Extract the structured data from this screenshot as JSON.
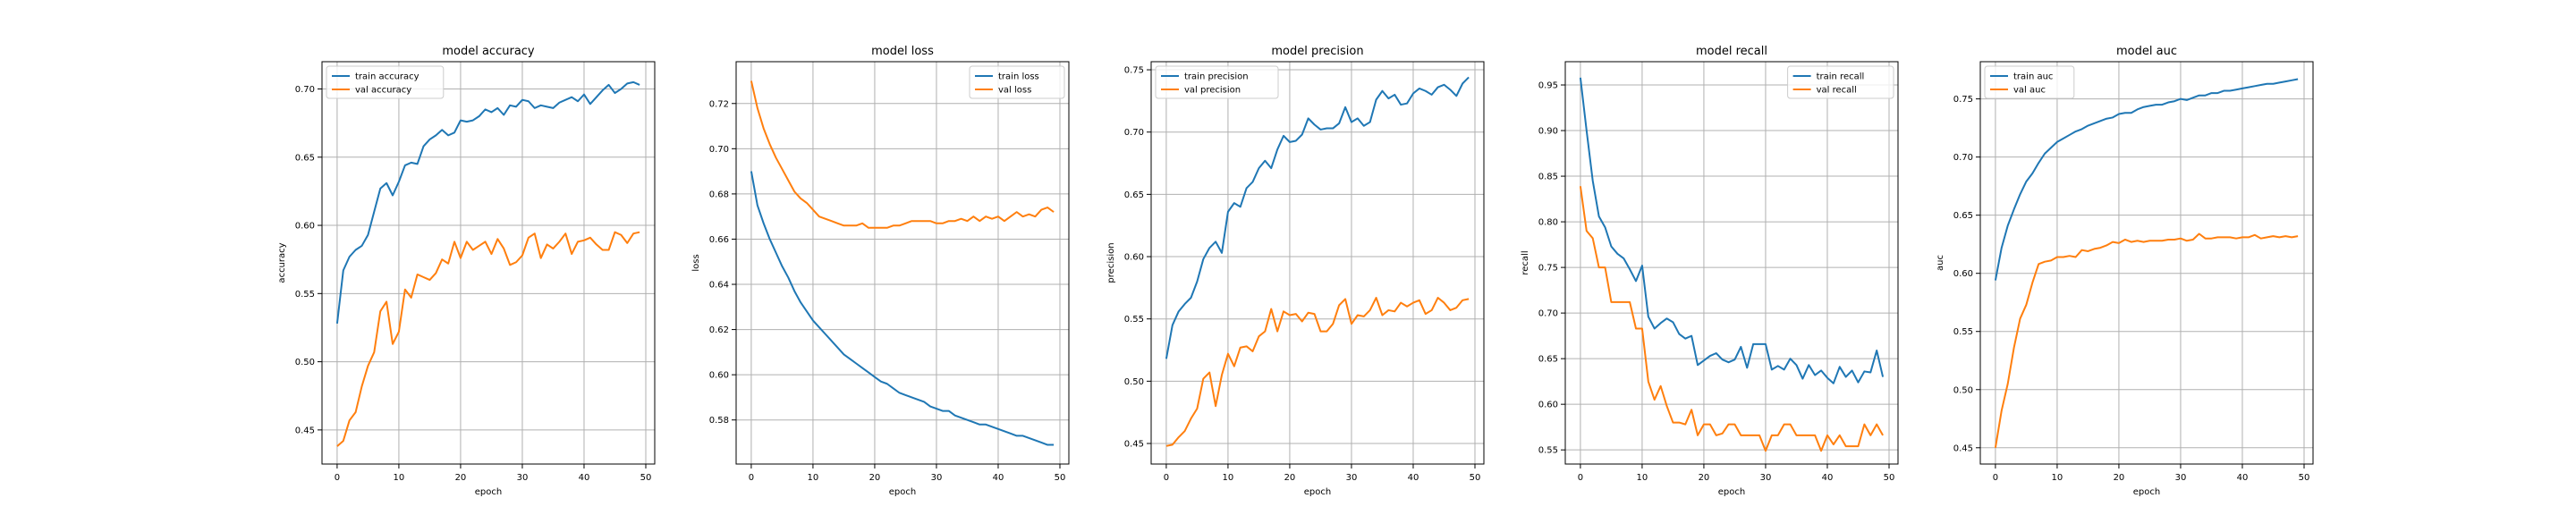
{
  "figure": {
    "background": "#ffffff"
  },
  "colors": {
    "train": "#1f77b4",
    "val": "#ff7f0e",
    "grid": "#b0b0b0"
  },
  "chart_data": [
    {
      "type": "line",
      "title": "model accuracy",
      "xlabel": "epoch",
      "ylabel": "accuracy",
      "xlim": [
        -2.45,
        51.45
      ],
      "ylim": [
        0.425,
        0.72
      ],
      "xticks": [
        0,
        10,
        20,
        30,
        40,
        50
      ],
      "yticks": [
        0.45,
        0.5,
        0.55,
        0.6,
        0.65,
        0.7
      ],
      "ytick_labels": [
        "0.45",
        "0.50",
        "0.55",
        "0.60",
        "0.65",
        "0.70"
      ],
      "legend": "upper left",
      "grid": true,
      "x": [
        0,
        1,
        2,
        3,
        4,
        5,
        6,
        7,
        8,
        9,
        10,
        11,
        12,
        13,
        14,
        15,
        16,
        17,
        18,
        19,
        20,
        21,
        22,
        23,
        24,
        25,
        26,
        27,
        28,
        29,
        30,
        31,
        32,
        33,
        34,
        35,
        36,
        37,
        38,
        39,
        40,
        41,
        42,
        43,
        44,
        45,
        46,
        47,
        48,
        49
      ],
      "series": [
        {
          "name": "train accuracy",
          "color": "#1f77b4",
          "values": [
            0.528,
            0.567,
            0.577,
            0.582,
            0.585,
            0.593,
            0.61,
            0.627,
            0.631,
            0.622,
            0.632,
            0.644,
            0.646,
            0.645,
            0.658,
            0.663,
            0.666,
            0.67,
            0.666,
            0.668,
            0.677,
            0.676,
            0.677,
            0.68,
            0.685,
            0.683,
            0.686,
            0.681,
            0.688,
            0.687,
            0.692,
            0.691,
            0.686,
            0.688,
            0.687,
            0.686,
            0.69,
            0.692,
            0.694,
            0.691,
            0.696,
            0.689,
            0.694,
            0.699,
            0.703,
            0.697,
            0.7,
            0.704,
            0.705,
            0.703
          ]
        },
        {
          "name": "val accuracy",
          "color": "#ff7f0e",
          "values": [
            0.438,
            0.442,
            0.457,
            0.463,
            0.482,
            0.497,
            0.507,
            0.537,
            0.544,
            0.513,
            0.522,
            0.553,
            0.547,
            0.564,
            0.562,
            0.56,
            0.565,
            0.575,
            0.572,
            0.588,
            0.576,
            0.588,
            0.582,
            0.585,
            0.588,
            0.579,
            0.59,
            0.583,
            0.571,
            0.573,
            0.578,
            0.591,
            0.594,
            0.576,
            0.586,
            0.583,
            0.588,
            0.594,
            0.579,
            0.588,
            0.589,
            0.591,
            0.586,
            0.582,
            0.582,
            0.595,
            0.593,
            0.587,
            0.594,
            0.595
          ]
        }
      ]
    },
    {
      "type": "line",
      "title": "model loss",
      "xlabel": "epoch",
      "ylabel": "loss",
      "xlim": [
        -2.45,
        51.45
      ],
      "ylim": [
        0.5605,
        0.7385
      ],
      "xticks": [
        0,
        10,
        20,
        30,
        40,
        50
      ],
      "yticks": [
        0.58,
        0.6,
        0.62,
        0.64,
        0.66,
        0.68,
        0.7,
        0.72
      ],
      "ytick_labels": [
        "0.58",
        "0.60",
        "0.62",
        "0.64",
        "0.66",
        "0.68",
        "0.70",
        "0.72"
      ],
      "legend": "upper right",
      "grid": true,
      "x": [
        0,
        1,
        2,
        3,
        4,
        5,
        6,
        7,
        8,
        9,
        10,
        11,
        12,
        13,
        14,
        15,
        16,
        17,
        18,
        19,
        20,
        21,
        22,
        23,
        24,
        25,
        26,
        27,
        28,
        29,
        30,
        31,
        32,
        33,
        34,
        35,
        36,
        37,
        38,
        39,
        40,
        41,
        42,
        43,
        44,
        45,
        46,
        47,
        48,
        49
      ],
      "series": [
        {
          "name": "train loss",
          "color": "#1f77b4",
          "values": [
            0.69,
            0.675,
            0.667,
            0.66,
            0.654,
            0.648,
            0.643,
            0.637,
            0.632,
            0.628,
            0.624,
            0.621,
            0.618,
            0.615,
            0.612,
            0.609,
            0.607,
            0.605,
            0.603,
            0.601,
            0.599,
            0.597,
            0.596,
            0.594,
            0.592,
            0.591,
            0.59,
            0.589,
            0.588,
            0.586,
            0.585,
            0.584,
            0.584,
            0.582,
            0.581,
            0.58,
            0.579,
            0.578,
            0.578,
            0.577,
            0.576,
            0.575,
            0.574,
            0.573,
            0.573,
            0.572,
            0.571,
            0.57,
            0.569,
            0.569
          ]
        },
        {
          "name": "val loss",
          "color": "#ff7f0e",
          "values": [
            0.73,
            0.718,
            0.709,
            0.702,
            0.696,
            0.691,
            0.686,
            0.681,
            0.678,
            0.676,
            0.673,
            0.67,
            0.669,
            0.668,
            0.667,
            0.666,
            0.666,
            0.666,
            0.667,
            0.665,
            0.665,
            0.665,
            0.665,
            0.666,
            0.666,
            0.667,
            0.668,
            0.668,
            0.668,
            0.668,
            0.667,
            0.667,
            0.668,
            0.668,
            0.669,
            0.668,
            0.67,
            0.668,
            0.67,
            0.669,
            0.67,
            0.668,
            0.67,
            0.672,
            0.67,
            0.671,
            0.67,
            0.673,
            0.674,
            0.672
          ]
        }
      ]
    },
    {
      "type": "line",
      "title": "model precision",
      "xlabel": "epoch",
      "ylabel": "precision",
      "xlim": [
        -2.45,
        51.45
      ],
      "ylim": [
        0.4335,
        0.7565
      ],
      "xticks": [
        0,
        10,
        20,
        30,
        40,
        50
      ],
      "yticks": [
        0.45,
        0.5,
        0.55,
        0.6,
        0.65,
        0.7,
        0.75
      ],
      "ytick_labels": [
        "0.45",
        "0.50",
        "0.55",
        "0.60",
        "0.65",
        "0.70",
        "0.75"
      ],
      "legend": "upper left",
      "grid": true,
      "x": [
        0,
        1,
        2,
        3,
        4,
        5,
        6,
        7,
        8,
        9,
        10,
        11,
        12,
        13,
        14,
        15,
        16,
        17,
        18,
        19,
        20,
        21,
        22,
        23,
        24,
        25,
        26,
        27,
        28,
        29,
        30,
        31,
        32,
        33,
        34,
        35,
        36,
        37,
        38,
        39,
        40,
        41,
        42,
        43,
        44,
        45,
        46,
        47,
        48,
        49
      ],
      "series": [
        {
          "name": "train precision",
          "color": "#1f77b4",
          "values": [
            0.518,
            0.545,
            0.556,
            0.562,
            0.567,
            0.58,
            0.598,
            0.607,
            0.612,
            0.603,
            0.636,
            0.643,
            0.64,
            0.655,
            0.66,
            0.671,
            0.677,
            0.671,
            0.686,
            0.697,
            0.692,
            0.693,
            0.698,
            0.711,
            0.706,
            0.702,
            0.703,
            0.703,
            0.707,
            0.72,
            0.708,
            0.711,
            0.705,
            0.708,
            0.726,
            0.733,
            0.727,
            0.73,
            0.722,
            0.723,
            0.731,
            0.735,
            0.733,
            0.73,
            0.736,
            0.738,
            0.734,
            0.729,
            0.739,
            0.744
          ]
        },
        {
          "name": "val precision",
          "color": "#ff7f0e",
          "values": [
            0.448,
            0.449,
            0.455,
            0.46,
            0.47,
            0.478,
            0.502,
            0.507,
            0.48,
            0.505,
            0.522,
            0.512,
            0.527,
            0.528,
            0.524,
            0.536,
            0.54,
            0.558,
            0.54,
            0.556,
            0.553,
            0.554,
            0.548,
            0.555,
            0.554,
            0.54,
            0.54,
            0.546,
            0.561,
            0.566,
            0.546,
            0.553,
            0.552,
            0.557,
            0.567,
            0.553,
            0.557,
            0.556,
            0.563,
            0.56,
            0.563,
            0.565,
            0.554,
            0.557,
            0.567,
            0.563,
            0.557,
            0.559,
            0.565,
            0.566
          ]
        }
      ]
    },
    {
      "type": "line",
      "title": "model recall",
      "xlabel": "epoch",
      "ylabel": "recall",
      "xlim": [
        -2.45,
        51.45
      ],
      "ylim": [
        0.5345,
        0.9755
      ],
      "xticks": [
        0,
        10,
        20,
        30,
        40,
        50
      ],
      "yticks": [
        0.55,
        0.6,
        0.65,
        0.7,
        0.75,
        0.8,
        0.85,
        0.9,
        0.95
      ],
      "ytick_labels": [
        "0.55",
        "0.60",
        "0.65",
        "0.70",
        "0.75",
        "0.80",
        "0.85",
        "0.90",
        "0.95"
      ],
      "legend": "upper right",
      "grid": true,
      "x": [
        0,
        1,
        2,
        3,
        4,
        5,
        6,
        7,
        8,
        9,
        10,
        11,
        12,
        13,
        14,
        15,
        16,
        17,
        18,
        19,
        20,
        21,
        22,
        23,
        24,
        25,
        26,
        27,
        28,
        29,
        30,
        31,
        32,
        33,
        34,
        35,
        36,
        37,
        38,
        39,
        40,
        41,
        42,
        43,
        44,
        45,
        46,
        47,
        48,
        49
      ],
      "series": [
        {
          "name": "train recall",
          "color": "#1f77b4",
          "values": [
            0.958,
            0.9,
            0.845,
            0.806,
            0.794,
            0.773,
            0.765,
            0.76,
            0.748,
            0.735,
            0.752,
            0.696,
            0.683,
            0.689,
            0.694,
            0.69,
            0.677,
            0.672,
            0.675,
            0.643,
            0.648,
            0.653,
            0.656,
            0.649,
            0.646,
            0.649,
            0.663,
            0.64,
            0.666,
            0.666,
            0.666,
            0.638,
            0.642,
            0.638,
            0.65,
            0.643,
            0.628,
            0.643,
            0.632,
            0.637,
            0.629,
            0.623,
            0.641,
            0.63,
            0.637,
            0.624,
            0.636,
            0.635,
            0.659,
            0.63
          ]
        },
        {
          "name": "val recall",
          "color": "#ff7f0e",
          "values": [
            0.839,
            0.79,
            0.782,
            0.75,
            0.75,
            0.712,
            0.712,
            0.712,
            0.712,
            0.683,
            0.683,
            0.625,
            0.605,
            0.62,
            0.598,
            0.58,
            0.58,
            0.578,
            0.594,
            0.566,
            0.578,
            0.578,
            0.566,
            0.568,
            0.578,
            0.578,
            0.566,
            0.566,
            0.566,
            0.566,
            0.549,
            0.566,
            0.566,
            0.578,
            0.578,
            0.566,
            0.566,
            0.566,
            0.566,
            0.549,
            0.566,
            0.556,
            0.566,
            0.554,
            0.554,
            0.554,
            0.578,
            0.566,
            0.578,
            0.566
          ]
        }
      ]
    },
    {
      "type": "line",
      "title": "model auc",
      "xlabel": "epoch",
      "ylabel": "auc",
      "xlim": [
        -2.45,
        51.45
      ],
      "ylim": [
        0.436,
        0.782
      ],
      "xticks": [
        0,
        10,
        20,
        30,
        40,
        50
      ],
      "yticks": [
        0.45,
        0.5,
        0.55,
        0.6,
        0.65,
        0.7,
        0.75
      ],
      "ytick_labels": [
        "0.45",
        "0.50",
        "0.55",
        "0.60",
        "0.65",
        "0.70",
        "0.75"
      ],
      "legend": "upper left",
      "grid": true,
      "x": [
        0,
        1,
        2,
        3,
        4,
        5,
        6,
        7,
        8,
        9,
        10,
        11,
        12,
        13,
        14,
        15,
        16,
        17,
        18,
        19,
        20,
        21,
        22,
        23,
        24,
        25,
        26,
        27,
        28,
        29,
        30,
        31,
        32,
        33,
        34,
        35,
        36,
        37,
        38,
        39,
        40,
        41,
        42,
        43,
        44,
        45,
        46,
        47,
        48,
        49
      ],
      "series": [
        {
          "name": "train auc",
          "color": "#1f77b4",
          "values": [
            0.594,
            0.622,
            0.641,
            0.655,
            0.668,
            0.679,
            0.686,
            0.695,
            0.703,
            0.708,
            0.713,
            0.716,
            0.719,
            0.722,
            0.724,
            0.727,
            0.729,
            0.731,
            0.733,
            0.734,
            0.737,
            0.738,
            0.738,
            0.741,
            0.743,
            0.744,
            0.745,
            0.745,
            0.747,
            0.748,
            0.75,
            0.749,
            0.751,
            0.753,
            0.753,
            0.755,
            0.755,
            0.757,
            0.757,
            0.758,
            0.759,
            0.76,
            0.761,
            0.762,
            0.763,
            0.763,
            0.764,
            0.765,
            0.766,
            0.767
          ]
        },
        {
          "name": "val auc",
          "color": "#ff7f0e",
          "values": [
            0.45,
            0.482,
            0.505,
            0.536,
            0.561,
            0.573,
            0.592,
            0.608,
            0.61,
            0.611,
            0.614,
            0.614,
            0.615,
            0.614,
            0.62,
            0.619,
            0.621,
            0.622,
            0.624,
            0.627,
            0.626,
            0.629,
            0.627,
            0.628,
            0.627,
            0.628,
            0.628,
            0.628,
            0.629,
            0.629,
            0.63,
            0.628,
            0.629,
            0.634,
            0.63,
            0.63,
            0.631,
            0.631,
            0.631,
            0.63,
            0.631,
            0.631,
            0.633,
            0.63,
            0.631,
            0.632,
            0.631,
            0.632,
            0.631,
            0.632
          ]
        }
      ]
    }
  ]
}
